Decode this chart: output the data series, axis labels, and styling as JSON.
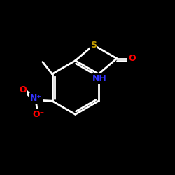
{
  "bg_color": "#000000",
  "bond_color": "#ffffff",
  "bond_width": 2.0,
  "S_color": "#c8a000",
  "N_color": "#3333ff",
  "O_color": "#ff0000",
  "NH_color": "#3333ff",
  "figsize": [
    2.5,
    2.5
  ],
  "dpi": 100,
  "xlim": [
    0,
    10
  ],
  "ylim": [
    0,
    10
  ]
}
